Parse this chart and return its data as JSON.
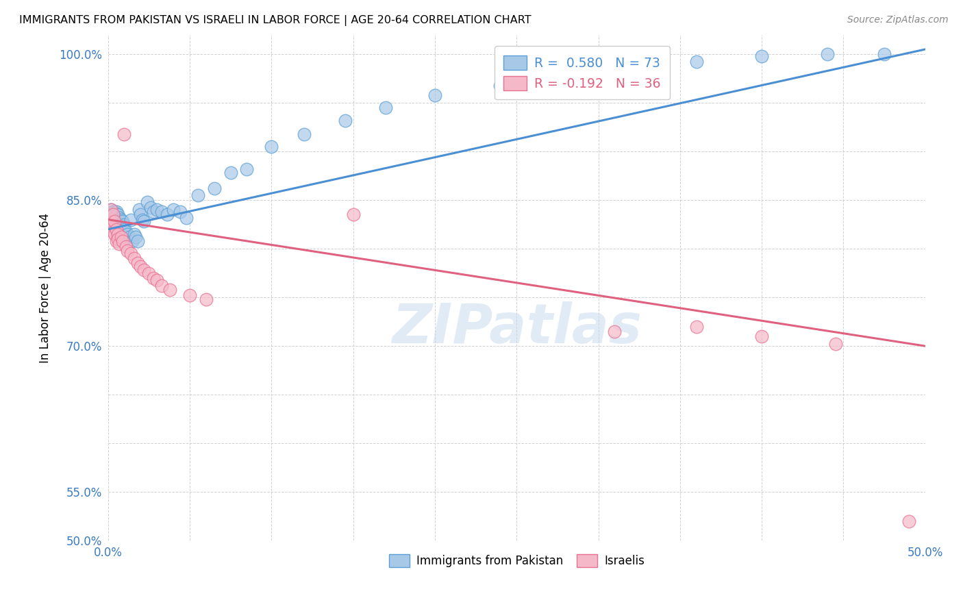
{
  "title": "IMMIGRANTS FROM PAKISTAN VS ISRAELI IN LABOR FORCE | AGE 20-64 CORRELATION CHART",
  "source": "Source: ZipAtlas.com",
  "ylabel": "In Labor Force | Age 20-64",
  "xlim": [
    0.0,
    0.5
  ],
  "ylim": [
    0.5,
    1.02
  ],
  "blue_R": 0.58,
  "blue_N": 73,
  "pink_R": -0.192,
  "pink_N": 36,
  "blue_color": "#a8c8e8",
  "pink_color": "#f5b8c8",
  "blue_edge_color": "#5a9fd4",
  "pink_edge_color": "#e87090",
  "blue_line_color": "#4a8fd4",
  "pink_line_color": "#e06080",
  "watermark": "ZIPatlas",
  "legend_label_blue": "Immigrants from Pakistan",
  "legend_label_pink": "Israelis",
  "blue_line_x0": 0.0,
  "blue_line_y0": 0.82,
  "blue_line_x1": 0.5,
  "blue_line_y1": 1.005,
  "pink_line_x0": 0.0,
  "pink_line_y0": 0.83,
  "pink_line_x1": 0.5,
  "pink_line_y1": 0.7,
  "blue_points_x": [
    0.001,
    0.001,
    0.001,
    0.002,
    0.002,
    0.002,
    0.002,
    0.003,
    0.003,
    0.003,
    0.003,
    0.003,
    0.004,
    0.004,
    0.004,
    0.004,
    0.004,
    0.005,
    0.005,
    0.005,
    0.005,
    0.005,
    0.006,
    0.006,
    0.006,
    0.006,
    0.007,
    0.007,
    0.007,
    0.008,
    0.008,
    0.009,
    0.009,
    0.01,
    0.01,
    0.011,
    0.012,
    0.013,
    0.014,
    0.015,
    0.016,
    0.017,
    0.018,
    0.019,
    0.02,
    0.021,
    0.022,
    0.024,
    0.026,
    0.028,
    0.03,
    0.033,
    0.036,
    0.04,
    0.044,
    0.048,
    0.055,
    0.065,
    0.075,
    0.085,
    0.1,
    0.12,
    0.145,
    0.17,
    0.2,
    0.24,
    0.28,
    0.32,
    0.36,
    0.4,
    0.44,
    0.475,
    0.335
  ],
  "blue_points_y": [
    0.832,
    0.83,
    0.828,
    0.835,
    0.84,
    0.83,
    0.825,
    0.838,
    0.832,
    0.828,
    0.825,
    0.82,
    0.838,
    0.835,
    0.832,
    0.828,
    0.822,
    0.838,
    0.835,
    0.83,
    0.825,
    0.82,
    0.835,
    0.83,
    0.825,
    0.82,
    0.832,
    0.828,
    0.822,
    0.83,
    0.825,
    0.828,
    0.82,
    0.825,
    0.82,
    0.818,
    0.815,
    0.812,
    0.83,
    0.808,
    0.815,
    0.812,
    0.808,
    0.84,
    0.835,
    0.83,
    0.828,
    0.848,
    0.842,
    0.838,
    0.84,
    0.838,
    0.835,
    0.84,
    0.838,
    0.832,
    0.855,
    0.862,
    0.878,
    0.882,
    0.905,
    0.918,
    0.932,
    0.945,
    0.958,
    0.968,
    0.98,
    0.988,
    0.992,
    0.998,
    1.0,
    1.0,
    0.995
  ],
  "pink_points_x": [
    0.001,
    0.001,
    0.002,
    0.002,
    0.003,
    0.003,
    0.004,
    0.004,
    0.005,
    0.005,
    0.006,
    0.006,
    0.007,
    0.008,
    0.009,
    0.01,
    0.011,
    0.012,
    0.014,
    0.016,
    0.018,
    0.02,
    0.022,
    0.025,
    0.028,
    0.03,
    0.033,
    0.038,
    0.05,
    0.06,
    0.15,
    0.31,
    0.36,
    0.4,
    0.445,
    0.49
  ],
  "pink_points_y": [
    0.83,
    0.82,
    0.84,
    0.825,
    0.835,
    0.818,
    0.828,
    0.815,
    0.82,
    0.808,
    0.815,
    0.81,
    0.805,
    0.812,
    0.808,
    0.918,
    0.802,
    0.798,
    0.795,
    0.79,
    0.785,
    0.782,
    0.778,
    0.775,
    0.77,
    0.768,
    0.762,
    0.758,
    0.752,
    0.748,
    0.835,
    0.715,
    0.72,
    0.71,
    0.702,
    0.52
  ]
}
